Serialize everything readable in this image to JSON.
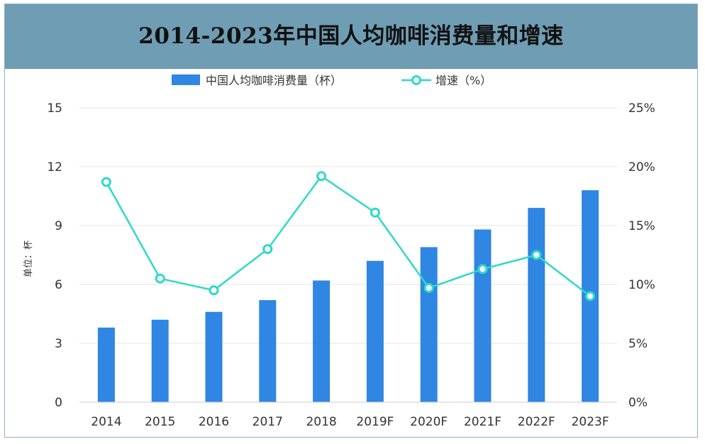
{
  "title": "2014-2023年中国人均咖啡消费量和增速",
  "colors": {
    "bar": "#2f86e3",
    "line": "#2fd9c6",
    "title_bg": "#6f9db3",
    "axis_text": "#333333",
    "grid": "#e6e6e6"
  },
  "chart_data": {
    "type": "bar",
    "title": "2014-2023年中国人均咖啡消费量和增速",
    "categories": [
      "2014",
      "2015",
      "2016",
      "2017",
      "2018",
      "2019F",
      "2020F",
      "2021F",
      "2022F",
      "2023F"
    ],
    "series": [
      {
        "name": "中国人均咖啡消费量（杯）",
        "type": "bar",
        "axis": "left",
        "values": [
          3.8,
          4.2,
          4.6,
          5.2,
          6.2,
          7.2,
          7.9,
          8.8,
          9.9,
          10.8
        ]
      },
      {
        "name": "增速（%）",
        "type": "line",
        "axis": "right",
        "values": [
          18.7,
          10.5,
          9.5,
          13.0,
          19.2,
          16.1,
          9.7,
          11.3,
          12.5,
          9.0
        ]
      }
    ],
    "ylabel": "单位：杯",
    "ylim": [
      0,
      15
    ],
    "yticks": [
      0,
      3,
      6,
      9,
      12,
      15
    ],
    "ytick_labels": [
      "0",
      "3",
      "6",
      "9",
      "12",
      "15"
    ],
    "y2lim": [
      0,
      25
    ],
    "y2ticks": [
      0,
      5,
      10,
      15,
      20,
      25
    ],
    "y2tick_labels": [
      "0%",
      "5%",
      "10%",
      "15%",
      "20%",
      "25%"
    ],
    "legend_position": "top-center",
    "grid": true
  }
}
